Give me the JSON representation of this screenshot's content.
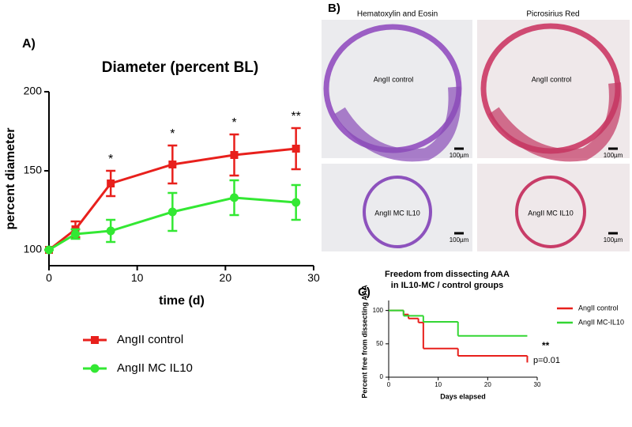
{
  "chart_data": [
    {
      "type": "line",
      "panel_label": "A)",
      "title": "Diameter (percent BL)",
      "x_label": "time (d)",
      "y_label": "percent diameter",
      "x": [
        0,
        3,
        7,
        14,
        21,
        28
      ],
      "series": [
        {
          "name": "AngII control",
          "color": "#e8201c",
          "marker": "square",
          "values": [
            100,
            113,
            142,
            154,
            160,
            164
          ],
          "errors": [
            0,
            5,
            8,
            12,
            13,
            13
          ]
        },
        {
          "name": "AngII MC IL10",
          "color": "#33e833",
          "marker": "circle",
          "values": [
            100,
            110,
            112,
            124,
            133,
            130
          ],
          "errors": [
            0,
            3,
            7,
            12,
            11,
            11
          ]
        }
      ],
      "annotations": [
        {
          "x": 7,
          "text": "*"
        },
        {
          "x": 14,
          "text": "*"
        },
        {
          "x": 21,
          "text": "*"
        },
        {
          "x": 28,
          "text": "**"
        }
      ],
      "xlim": [
        0,
        30
      ],
      "xticks": [
        0,
        10,
        20,
        30
      ],
      "ylim": [
        90,
        200
      ],
      "yticks": [
        100,
        150,
        200
      ]
    },
    {
      "type": "step",
      "panel_label": "C)",
      "title": [
        "Freedom from dissecting AAA",
        "in IL10-MC / control groups"
      ],
      "x_label": "Days elapsed",
      "y_label": "Percent free from dissecting AAA",
      "series": [
        {
          "name": "AngII control",
          "color": "#e8201c",
          "x": [
            0,
            3,
            4,
            6,
            7,
            14,
            28
          ],
          "values": [
            100,
            94,
            88,
            82,
            43,
            32,
            22
          ]
        },
        {
          "name": "AngII MC-IL10",
          "color": "#33d633",
          "x": [
            0,
            3,
            7,
            14,
            28
          ],
          "values": [
            100,
            92,
            83,
            62,
            62
          ]
        }
      ],
      "annotations": [
        "**",
        "p=0.01"
      ],
      "legend": "upper right",
      "xlim": [
        0,
        30
      ],
      "xticks": [
        0,
        10,
        20,
        30
      ],
      "ylim": [
        0,
        115
      ],
      "yticks": [
        0,
        50,
        100
      ]
    }
  ],
  "histology": {
    "panel_label": "B)",
    "columns": [
      "Hematoxylin and Eosin",
      "Picrosirius Red"
    ],
    "panels": [
      {
        "label": "AngII control",
        "scale": "100µm"
      },
      {
        "label": "AngII control",
        "scale": "100µm"
      },
      {
        "label": "AngII MC IL10",
        "scale": "100µm"
      },
      {
        "label": "AngII MC IL10",
        "scale": "100µm"
      }
    ]
  }
}
